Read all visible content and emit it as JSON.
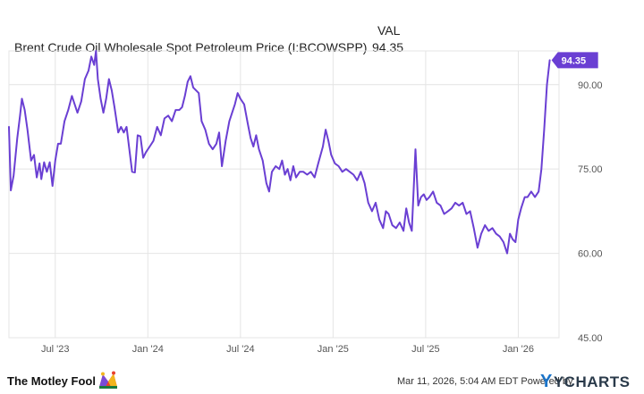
{
  "legend": {
    "val_header": "VAL",
    "series_name": "Brent Crude Oil Wholesale Spot Petroleum Price (I:BCOWSPP)",
    "series_value": "94.35"
  },
  "footer": {
    "brand": "The Motley Fool",
    "timestamp": "Mar 11, 2026, 5:04 AM EDT Powered by",
    "provider": "YCHARTS"
  },
  "colors": {
    "line": "#6a3fd3",
    "badge": "#6a3fd3",
    "grid": "#e4e4e4",
    "axis_text": "#555555"
  },
  "chart_data": {
    "type": "line",
    "title": "Brent Crude Oil Wholesale Spot Petroleum Price (I:BCOWSPP)",
    "xlabel": "",
    "ylabel": "",
    "ylim": [
      45,
      96
    ],
    "x_range": [
      2023.25,
      2026.22
    ],
    "yticks": [
      {
        "value": 45,
        "label": "45.00"
      },
      {
        "value": 60,
        "label": "60.00"
      },
      {
        "value": 75,
        "label": "75.00"
      },
      {
        "value": 90,
        "label": "90.00"
      }
    ],
    "xticks": [
      {
        "value": 2023.5,
        "label": "Jul '23"
      },
      {
        "value": 2024.0,
        "label": "Jan '24"
      },
      {
        "value": 2024.5,
        "label": "Jul '24"
      },
      {
        "value": 2025.0,
        "label": "Jan '25"
      },
      {
        "value": 2025.5,
        "label": "Jul '25"
      },
      {
        "value": 2026.0,
        "label": "Jan '26"
      }
    ],
    "last_value_label": "94.35",
    "series": [
      {
        "name": "Brent Crude Oil Wholesale Spot Petroleum Price",
        "points": [
          [
            2023.25,
            82.5
          ],
          [
            2023.26,
            71.2
          ],
          [
            2023.275,
            73.8
          ],
          [
            2023.295,
            80.5
          ],
          [
            2023.31,
            84.5
          ],
          [
            2023.32,
            87.5
          ],
          [
            2023.335,
            85.5
          ],
          [
            2023.35,
            82.0
          ],
          [
            2023.37,
            76.5
          ],
          [
            2023.385,
            77.5
          ],
          [
            2023.4,
            73.5
          ],
          [
            2023.415,
            76.0
          ],
          [
            2023.425,
            73.2
          ],
          [
            2023.44,
            76.2
          ],
          [
            2023.455,
            74.5
          ],
          [
            2023.47,
            76.2
          ],
          [
            2023.485,
            72.0
          ],
          [
            2023.5,
            76.5
          ],
          [
            2023.515,
            79.5
          ],
          [
            2023.53,
            79.5
          ],
          [
            2023.55,
            83.5
          ],
          [
            2023.57,
            85.5
          ],
          [
            2023.59,
            88.0
          ],
          [
            2023.605,
            86.5
          ],
          [
            2023.62,
            85.0
          ],
          [
            2023.64,
            87.0
          ],
          [
            2023.66,
            91.0
          ],
          [
            2023.68,
            92.5
          ],
          [
            2023.695,
            95.0
          ],
          [
            2023.71,
            93.5
          ],
          [
            2023.72,
            96.0
          ],
          [
            2023.73,
            91.0
          ],
          [
            2023.745,
            87.5
          ],
          [
            2023.76,
            85.0
          ],
          [
            2023.775,
            87.5
          ],
          [
            2023.79,
            91.0
          ],
          [
            2023.805,
            89.0
          ],
          [
            2023.82,
            86.0
          ],
          [
            2023.84,
            81.5
          ],
          [
            2023.855,
            82.5
          ],
          [
            2023.87,
            81.5
          ],
          [
            2023.885,
            82.5
          ],
          [
            2023.9,
            78.5
          ],
          [
            2023.915,
            74.5
          ],
          [
            2023.93,
            74.4
          ],
          [
            2023.945,
            81.0
          ],
          [
            2023.96,
            80.8
          ],
          [
            2023.975,
            77.0
          ],
          [
            2023.99,
            78.0
          ],
          [
            2024.01,
            79.0
          ],
          [
            2024.03,
            80.0
          ],
          [
            2024.05,
            82.5
          ],
          [
            2024.07,
            81.0
          ],
          [
            2024.09,
            84.0
          ],
          [
            2024.11,
            84.5
          ],
          [
            2024.13,
            83.5
          ],
          [
            2024.15,
            85.5
          ],
          [
            2024.17,
            85.5
          ],
          [
            2024.185,
            86.0
          ],
          [
            2024.2,
            88.0
          ],
          [
            2024.215,
            90.5
          ],
          [
            2024.23,
            91.5
          ],
          [
            2024.245,
            89.5
          ],
          [
            2024.26,
            89.0
          ],
          [
            2024.275,
            88.5
          ],
          [
            2024.29,
            83.5
          ],
          [
            2024.31,
            82.0
          ],
          [
            2024.33,
            79.5
          ],
          [
            2024.35,
            78.5
          ],
          [
            2024.37,
            79.5
          ],
          [
            2024.385,
            81.5
          ],
          [
            2024.4,
            75.5
          ],
          [
            2024.42,
            80.0
          ],
          [
            2024.44,
            83.5
          ],
          [
            2024.455,
            85.0
          ],
          [
            2024.47,
            86.5
          ],
          [
            2024.485,
            88.5
          ],
          [
            2024.5,
            87.5
          ],
          [
            2024.52,
            86.5
          ],
          [
            2024.54,
            83.0
          ],
          [
            2024.555,
            80.5
          ],
          [
            2024.57,
            79.0
          ],
          [
            2024.585,
            81.0
          ],
          [
            2024.6,
            78.5
          ],
          [
            2024.62,
            76.5
          ],
          [
            2024.64,
            72.5
          ],
          [
            2024.655,
            71.0
          ],
          [
            2024.67,
            74.5
          ],
          [
            2024.69,
            75.5
          ],
          [
            2024.71,
            75.0
          ],
          [
            2024.725,
            76.5
          ],
          [
            2024.74,
            74.0
          ],
          [
            2024.755,
            75.0
          ],
          [
            2024.77,
            73.0
          ],
          [
            2024.785,
            75.5
          ],
          [
            2024.8,
            73.5
          ],
          [
            2024.82,
            74.5
          ],
          [
            2024.84,
            74.5
          ],
          [
            2024.86,
            74.0
          ],
          [
            2024.88,
            74.5
          ],
          [
            2024.9,
            73.5
          ],
          [
            2024.92,
            76.0
          ],
          [
            2024.945,
            79.0
          ],
          [
            2024.96,
            82.0
          ],
          [
            2024.975,
            80.0
          ],
          [
            2024.99,
            77.5
          ],
          [
            2025.01,
            76.0
          ],
          [
            2025.03,
            75.5
          ],
          [
            2025.05,
            74.5
          ],
          [
            2025.07,
            75.0
          ],
          [
            2025.09,
            74.5
          ],
          [
            2025.11,
            74.0
          ],
          [
            2025.13,
            73.0
          ],
          [
            2025.15,
            74.5
          ],
          [
            2025.17,
            72.5
          ],
          [
            2025.19,
            69.0
          ],
          [
            2025.21,
            67.5
          ],
          [
            2025.23,
            69.0
          ],
          [
            2025.25,
            66.0
          ],
          [
            2025.27,
            64.5
          ],
          [
            2025.285,
            67.5
          ],
          [
            2025.3,
            67.0
          ],
          [
            2025.32,
            65.0
          ],
          [
            2025.34,
            64.5
          ],
          [
            2025.36,
            65.5
          ],
          [
            2025.38,
            64.0
          ],
          [
            2025.395,
            68.0
          ],
          [
            2025.41,
            65.5
          ],
          [
            2025.425,
            64.0
          ],
          [
            2025.445,
            78.5
          ],
          [
            2025.46,
            68.5
          ],
          [
            2025.475,
            70.0
          ],
          [
            2025.49,
            70.5
          ],
          [
            2025.505,
            69.5
          ],
          [
            2025.52,
            70.0
          ],
          [
            2025.54,
            71.0
          ],
          [
            2025.56,
            69.0
          ],
          [
            2025.58,
            68.5
          ],
          [
            2025.6,
            67.0
          ],
          [
            2025.62,
            67.5
          ],
          [
            2025.64,
            68.0
          ],
          [
            2025.66,
            69.0
          ],
          [
            2025.68,
            68.5
          ],
          [
            2025.7,
            69.0
          ],
          [
            2025.72,
            67.0
          ],
          [
            2025.74,
            67.5
          ],
          [
            2025.76,
            64.5
          ],
          [
            2025.78,
            61.0
          ],
          [
            2025.8,
            63.5
          ],
          [
            2025.82,
            65.0
          ],
          [
            2025.84,
            64.0
          ],
          [
            2025.86,
            64.5
          ],
          [
            2025.88,
            63.5
          ],
          [
            2025.9,
            63.0
          ],
          [
            2025.92,
            62.0
          ],
          [
            2025.94,
            60.0
          ],
          [
            2025.955,
            63.5
          ],
          [
            2025.97,
            62.5
          ],
          [
            2025.985,
            62.0
          ],
          [
            2026.0,
            66.0
          ],
          [
            2026.015,
            68.0
          ],
          [
            2026.035,
            70.0
          ],
          [
            2026.05,
            70.0
          ],
          [
            2026.07,
            71.0
          ],
          [
            2026.09,
            70.0
          ],
          [
            2026.11,
            71.0
          ],
          [
            2026.125,
            75.0
          ],
          [
            2026.14,
            82.0
          ],
          [
            2026.155,
            90.0
          ],
          [
            2026.17,
            94.35
          ]
        ]
      }
    ]
  }
}
